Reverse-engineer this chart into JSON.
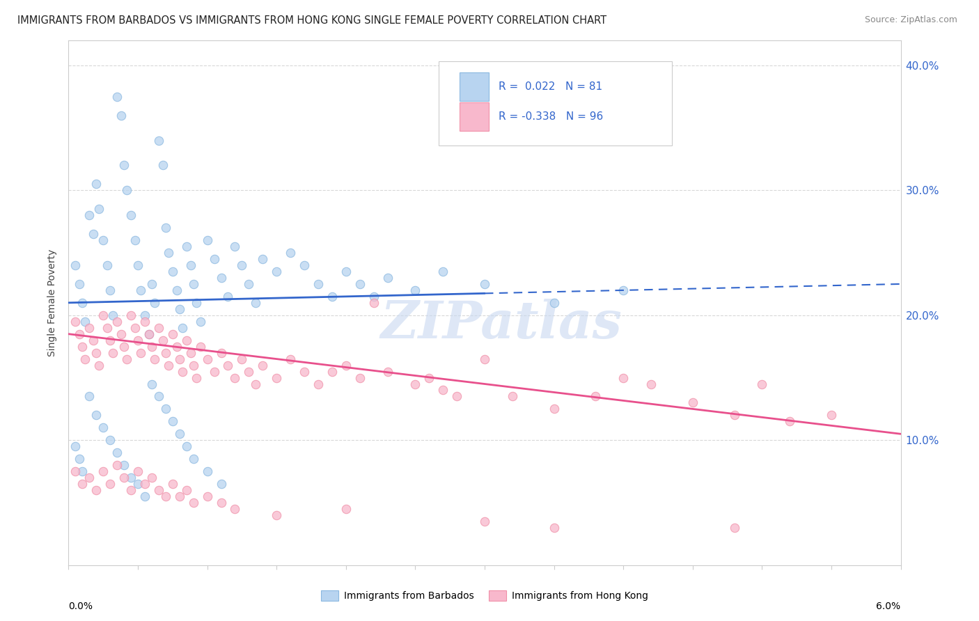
{
  "title": "IMMIGRANTS FROM BARBADOS VS IMMIGRANTS FROM HONG KONG SINGLE FEMALE POVERTY CORRELATION CHART",
  "source": "Source: ZipAtlas.com",
  "ylabel": "Single Female Poverty",
  "legend_blue_r": "0.022",
  "legend_blue_n": "81",
  "legend_pink_r": "-0.338",
  "legend_pink_n": "96",
  "legend_blue_label": "Immigrants from Barbados",
  "legend_pink_label": "Immigrants from Hong Kong",
  "blue_color": "#a8c8e8",
  "pink_color": "#f4a0b8",
  "blue_line_color": "#3366cc",
  "pink_line_color": "#e8508c",
  "watermark": "ZIPatlas",
  "xlim": [
    0.0,
    6.0
  ],
  "ylim": [
    0.0,
    42.0
  ],
  "blue_line_solid_end": 3.0,
  "blue_dots": [
    [
      0.05,
      24.0
    ],
    [
      0.08,
      22.5
    ],
    [
      0.1,
      21.0
    ],
    [
      0.12,
      19.5
    ],
    [
      0.15,
      28.0
    ],
    [
      0.18,
      26.5
    ],
    [
      0.2,
      30.5
    ],
    [
      0.22,
      28.5
    ],
    [
      0.25,
      26.0
    ],
    [
      0.28,
      24.0
    ],
    [
      0.3,
      22.0
    ],
    [
      0.32,
      20.0
    ],
    [
      0.35,
      37.5
    ],
    [
      0.38,
      36.0
    ],
    [
      0.4,
      32.0
    ],
    [
      0.42,
      30.0
    ],
    [
      0.45,
      28.0
    ],
    [
      0.48,
      26.0
    ],
    [
      0.5,
      24.0
    ],
    [
      0.52,
      22.0
    ],
    [
      0.55,
      20.0
    ],
    [
      0.58,
      18.5
    ],
    [
      0.6,
      22.5
    ],
    [
      0.62,
      21.0
    ],
    [
      0.65,
      34.0
    ],
    [
      0.68,
      32.0
    ],
    [
      0.7,
      27.0
    ],
    [
      0.72,
      25.0
    ],
    [
      0.75,
      23.5
    ],
    [
      0.78,
      22.0
    ],
    [
      0.8,
      20.5
    ],
    [
      0.82,
      19.0
    ],
    [
      0.85,
      25.5
    ],
    [
      0.88,
      24.0
    ],
    [
      0.9,
      22.5
    ],
    [
      0.92,
      21.0
    ],
    [
      0.95,
      19.5
    ],
    [
      1.0,
      26.0
    ],
    [
      1.05,
      24.5
    ],
    [
      1.1,
      23.0
    ],
    [
      1.15,
      21.5
    ],
    [
      1.2,
      25.5
    ],
    [
      1.25,
      24.0
    ],
    [
      1.3,
      22.5
    ],
    [
      1.35,
      21.0
    ],
    [
      1.4,
      24.5
    ],
    [
      1.5,
      23.5
    ],
    [
      1.6,
      25.0
    ],
    [
      1.7,
      24.0
    ],
    [
      1.8,
      22.5
    ],
    [
      1.9,
      21.5
    ],
    [
      2.0,
      23.5
    ],
    [
      2.1,
      22.5
    ],
    [
      2.2,
      21.5
    ],
    [
      2.3,
      23.0
    ],
    [
      2.5,
      22.0
    ],
    [
      2.7,
      23.5
    ],
    [
      3.0,
      22.5
    ],
    [
      3.5,
      21.0
    ],
    [
      4.0,
      22.0
    ],
    [
      0.05,
      9.5
    ],
    [
      0.08,
      8.5
    ],
    [
      0.1,
      7.5
    ],
    [
      0.15,
      13.5
    ],
    [
      0.2,
      12.0
    ],
    [
      0.25,
      11.0
    ],
    [
      0.3,
      10.0
    ],
    [
      0.35,
      9.0
    ],
    [
      0.4,
      8.0
    ],
    [
      0.45,
      7.0
    ],
    [
      0.5,
      6.5
    ],
    [
      0.55,
      5.5
    ],
    [
      0.6,
      14.5
    ],
    [
      0.65,
      13.5
    ],
    [
      0.7,
      12.5
    ],
    [
      0.75,
      11.5
    ],
    [
      0.8,
      10.5
    ],
    [
      0.85,
      9.5
    ],
    [
      0.9,
      8.5
    ],
    [
      1.0,
      7.5
    ],
    [
      1.1,
      6.5
    ]
  ],
  "pink_dots": [
    [
      0.05,
      19.5
    ],
    [
      0.08,
      18.5
    ],
    [
      0.1,
      17.5
    ],
    [
      0.12,
      16.5
    ],
    [
      0.15,
      19.0
    ],
    [
      0.18,
      18.0
    ],
    [
      0.2,
      17.0
    ],
    [
      0.22,
      16.0
    ],
    [
      0.25,
      20.0
    ],
    [
      0.28,
      19.0
    ],
    [
      0.3,
      18.0
    ],
    [
      0.32,
      17.0
    ],
    [
      0.35,
      19.5
    ],
    [
      0.38,
      18.5
    ],
    [
      0.4,
      17.5
    ],
    [
      0.42,
      16.5
    ],
    [
      0.45,
      20.0
    ],
    [
      0.48,
      19.0
    ],
    [
      0.5,
      18.0
    ],
    [
      0.52,
      17.0
    ],
    [
      0.55,
      19.5
    ],
    [
      0.58,
      18.5
    ],
    [
      0.6,
      17.5
    ],
    [
      0.62,
      16.5
    ],
    [
      0.65,
      19.0
    ],
    [
      0.68,
      18.0
    ],
    [
      0.7,
      17.0
    ],
    [
      0.72,
      16.0
    ],
    [
      0.75,
      18.5
    ],
    [
      0.78,
      17.5
    ],
    [
      0.8,
      16.5
    ],
    [
      0.82,
      15.5
    ],
    [
      0.85,
      18.0
    ],
    [
      0.88,
      17.0
    ],
    [
      0.9,
      16.0
    ],
    [
      0.92,
      15.0
    ],
    [
      0.95,
      17.5
    ],
    [
      1.0,
      16.5
    ],
    [
      1.05,
      15.5
    ],
    [
      1.1,
      17.0
    ],
    [
      1.15,
      16.0
    ],
    [
      1.2,
      15.0
    ],
    [
      1.25,
      16.5
    ],
    [
      1.3,
      15.5
    ],
    [
      1.35,
      14.5
    ],
    [
      1.4,
      16.0
    ],
    [
      1.5,
      15.0
    ],
    [
      1.6,
      16.5
    ],
    [
      1.7,
      15.5
    ],
    [
      1.8,
      14.5
    ],
    [
      1.9,
      15.5
    ],
    [
      2.0,
      16.0
    ],
    [
      2.1,
      15.0
    ],
    [
      2.2,
      21.0
    ],
    [
      2.3,
      15.5
    ],
    [
      2.5,
      14.5
    ],
    [
      2.6,
      15.0
    ],
    [
      2.7,
      14.0
    ],
    [
      2.8,
      13.5
    ],
    [
      3.0,
      16.5
    ],
    [
      3.2,
      13.5
    ],
    [
      3.5,
      12.5
    ],
    [
      3.8,
      13.5
    ],
    [
      4.0,
      15.0
    ],
    [
      4.2,
      14.5
    ],
    [
      4.5,
      13.0
    ],
    [
      4.8,
      12.0
    ],
    [
      5.0,
      14.5
    ],
    [
      5.2,
      11.5
    ],
    [
      5.5,
      12.0
    ],
    [
      0.05,
      7.5
    ],
    [
      0.1,
      6.5
    ],
    [
      0.15,
      7.0
    ],
    [
      0.2,
      6.0
    ],
    [
      0.25,
      7.5
    ],
    [
      0.3,
      6.5
    ],
    [
      0.35,
      8.0
    ],
    [
      0.4,
      7.0
    ],
    [
      0.45,
      6.0
    ],
    [
      0.5,
      7.5
    ],
    [
      0.55,
      6.5
    ],
    [
      0.6,
      7.0
    ],
    [
      0.65,
      6.0
    ],
    [
      0.7,
      5.5
    ],
    [
      0.75,
      6.5
    ],
    [
      0.8,
      5.5
    ],
    [
      0.85,
      6.0
    ],
    [
      0.9,
      5.0
    ],
    [
      1.0,
      5.5
    ],
    [
      1.1,
      5.0
    ],
    [
      1.2,
      4.5
    ],
    [
      1.5,
      4.0
    ],
    [
      2.0,
      4.5
    ],
    [
      3.0,
      3.5
    ],
    [
      4.8,
      3.0
    ],
    [
      3.5,
      3.0
    ]
  ],
  "blue_line": {
    "x0": 0.0,
    "y0": 21.0,
    "x1": 6.0,
    "y1": 22.5
  },
  "pink_line": {
    "x0": 0.0,
    "y0": 18.5,
    "x1": 6.0,
    "y1": 10.5
  }
}
